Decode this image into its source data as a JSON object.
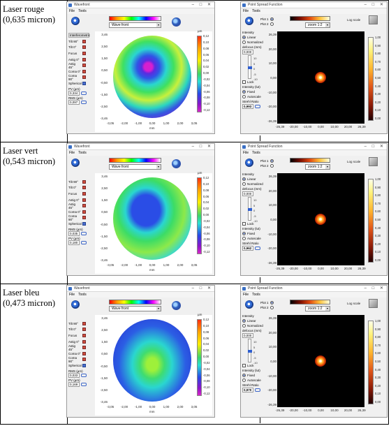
{
  "rows": [
    {
      "label_line1": "Laser rouge",
      "label_line2": "(0,635 micron)",
      "wavefront": {
        "title": "Wavefront",
        "menu": [
          "File",
          "Tools"
        ],
        "dropdown": "Wave front",
        "unit": "µm",
        "sidebar_header": "Interferometric",
        "sidebar_items": [
          "Tilt 90°",
          "Tilt 0°",
          "Focus",
          "Astig 0°",
          "Astig 45°",
          "Coma 0°",
          "Coma 90°",
          "Spherical"
        ],
        "pv_label": "PV (µm)",
        "pv_value": "0,334",
        "rms_label": "RMS (µm)",
        "rms_value": "0,097",
        "yticks": [
          "3,46",
          "3,00",
          "2,50",
          "2,00",
          "1,50",
          "1,00",
          "0,50",
          "0,00",
          "-0,50",
          "-1,00",
          "-1,50",
          "-2,00",
          "-2,50",
          "-3,00",
          "-3,46"
        ],
        "xticks": [
          "-3,05",
          "-2,00",
          "-1,00",
          "0,00",
          "1,00",
          "2,00",
          "3,05"
        ],
        "xunit": "mm",
        "cbar_ticks": [
          "0,12",
          "0,10",
          "0,08",
          "0,06",
          "0,04",
          "0,02",
          "0,00",
          "-0,02",
          "-0,04",
          "-0,06",
          "-0,08",
          "-0,10",
          "-0,12"
        ]
      },
      "psf": {
        "title": "Point Spread Function",
        "menu": [
          "File",
          "Tools"
        ],
        "plot_type": "Plot 1",
        "plot_type2": "Plot 2",
        "zoom_label": "zoom 1:2",
        "logscale_label": "Log scale",
        "intensity_label": "Intensity",
        "mode_linear": "Linear",
        "mode_log": "Normalized",
        "defocus_label": "defocus (mm)",
        "defocus_value": "0,000",
        "slider_ticks": [
          "10",
          "5",
          "0",
          "-5",
          "-10"
        ],
        "checkbox_label": "Lock",
        "intensity2_label": "Intensity (lut)",
        "radio_fixed": "Fixed",
        "radio_auto": "Autoscale",
        "strehl_label": "Strehl Ratio",
        "strehl_value": "0,993",
        "xticks": [
          "-26,39",
          "-20,00",
          "-10,00",
          "0,00",
          "10,00",
          "20,00",
          "26,39"
        ],
        "yticks": [
          "26,39",
          "20,00",
          "10,00",
          "0,00",
          "-10,00",
          "-20,00",
          "-26,39"
        ],
        "cbar_ticks": [
          "1,00",
          "0,90",
          "0,80",
          "0,70",
          "0,60",
          "0,50",
          "0,40",
          "0,30",
          "0,20",
          "0,10",
          "0,00"
        ]
      }
    },
    {
      "label_line1": "Laser vert",
      "label_line2": "(0,543 micron)",
      "wavefront": {
        "title": "Wavefront",
        "menu": [
          "File",
          "Tools"
        ],
        "dropdown": "Wave front",
        "unit": "µm",
        "sidebar_header": "",
        "sidebar_items": [
          "Tilt 90°",
          "Tilt 0°",
          "Focus",
          "Astig 0°",
          "Astig 45°",
          "Coma 0°",
          "Coma 90°",
          "Spherical"
        ],
        "pv_label": "RMS (µm)",
        "pv_value": "0,035",
        "rms_label": "PV (µm)",
        "rms_value": "0,180",
        "yticks": [
          "3,46",
          "3,00",
          "2,50",
          "2,00",
          "1,50",
          "1,00",
          "0,50",
          "0,00",
          "-0,50",
          "-1,00",
          "-1,50",
          "-2,00",
          "-2,50",
          "-3,00",
          "-3,46"
        ],
        "xticks": [
          "-3,05",
          "-2,00",
          "-1,00",
          "0,00",
          "1,00",
          "2,00",
          "3,05"
        ],
        "xunit": "mm",
        "cbar_ticks": [
          "0,12",
          "0,10",
          "0,08",
          "0,06",
          "0,04",
          "0,02",
          "0,00",
          "-0,02",
          "-0,04",
          "-0,06",
          "-0,08",
          "-0,10",
          "-0,12"
        ]
      },
      "psf": {
        "title": "Point Spread Function",
        "menu": [
          "File",
          "Tools"
        ],
        "plot_type": "Plot 1",
        "plot_type2": "Plot 2",
        "zoom_label": "zoom 1:2",
        "logscale_label": "Log scale",
        "intensity_label": "Intensity",
        "mode_linear": "Linear",
        "mode_log": "Normalized",
        "defocus_label": "defocus (mm)",
        "defocus_value": "0,000",
        "slider_ticks": [
          "10",
          "5",
          "0",
          "-5",
          "-10"
        ],
        "checkbox_label": "Lock",
        "intensity2_label": "Intensity (lut)",
        "radio_fixed": "Fixed",
        "radio_auto": "Autoscale",
        "strehl_label": "Strehl Ratio",
        "strehl_value": "0,962",
        "xticks": [
          "-26,39",
          "-20,00",
          "-10,00",
          "0,00",
          "10,00",
          "20,00",
          "26,39"
        ],
        "yticks": [
          "26,39",
          "20,00",
          "10,00",
          "0,00",
          "-10,00",
          "-20,00",
          "-26,39"
        ],
        "cbar_ticks": [
          "1,00",
          "0,90",
          "0,80",
          "0,70",
          "0,60",
          "0,50",
          "0,40",
          "0,30",
          "0,20",
          "0,10",
          "0,00"
        ]
      }
    },
    {
      "label_line1": "Laser bleu",
      "label_line2": "(0,473 micron)",
      "wavefront": {
        "title": "Wavefront",
        "menu": [
          "File",
          "Tools"
        ],
        "dropdown": "Wave front",
        "unit": "µm",
        "sidebar_header": "",
        "sidebar_items": [
          "Tilt 90°",
          "Tilt 0°",
          "Focus",
          "Astig 0°",
          "Astig 45°",
          "Coma 0°",
          "Coma 90°",
          "Spherical"
        ],
        "pv_label": "RMS (µm)",
        "pv_value": "0,033",
        "rms_label": "PV (µm)",
        "rms_value": "0,169",
        "yticks": [
          "3,46",
          "3,00",
          "2,50",
          "2,00",
          "1,50",
          "1,00",
          "0,50",
          "0,00",
          "-0,50",
          "-1,00",
          "-1,50",
          "-2,00",
          "-2,50",
          "-3,00",
          "-3,46"
        ],
        "xticks": [
          "-3,05",
          "-2,00",
          "-1,00",
          "0,00",
          "1,00",
          "2,00",
          "3,05"
        ],
        "xunit": "mm",
        "cbar_ticks": [
          "0,12",
          "0,10",
          "0,08",
          "0,06",
          "0,04",
          "0,02",
          "0,00",
          "-0,02",
          "-0,04",
          "-0,06",
          "-0,08",
          "-0,10",
          "-0,12"
        ]
      },
      "psf": {
        "title": "Point Spread Function",
        "menu": [
          "File",
          "Tools"
        ],
        "plot_type": "Plot 1",
        "plot_type2": "Plot 2",
        "zoom_label": "zoom 1:2",
        "logscale_label": "Log scale",
        "intensity_label": "Intensity",
        "mode_linear": "Linear",
        "mode_log": "Normalized",
        "defocus_label": "defocus (mm)",
        "defocus_value": "0,000",
        "slider_ticks": [
          "10",
          "5",
          "0",
          "-5",
          "-10"
        ],
        "checkbox_label": "Lock",
        "intensity2_label": "Intensity (lut)",
        "radio_fixed": "Fixed",
        "radio_auto": "Autoscale",
        "strehl_label": "Strehl Ratio",
        "strehl_value": "0,970",
        "xticks": [
          "-26,39",
          "-20,00",
          "-10,00",
          "0,00",
          "10,00",
          "20,00",
          "26,39"
        ],
        "yticks": [
          "26,39",
          "20,00",
          "10,00",
          "0,00",
          "-10,00",
          "-20,00",
          "-26,39"
        ],
        "cbar_ticks": [
          "1,00",
          "0,90",
          "0,80",
          "0,70",
          "0,60",
          "0,50",
          "0,40",
          "0,30",
          "0,20",
          "0,10",
          "0,00"
        ]
      }
    }
  ],
  "colors": {
    "border": "#000000",
    "psf_background": "#000000",
    "window_bg": "#f0f0f0"
  }
}
